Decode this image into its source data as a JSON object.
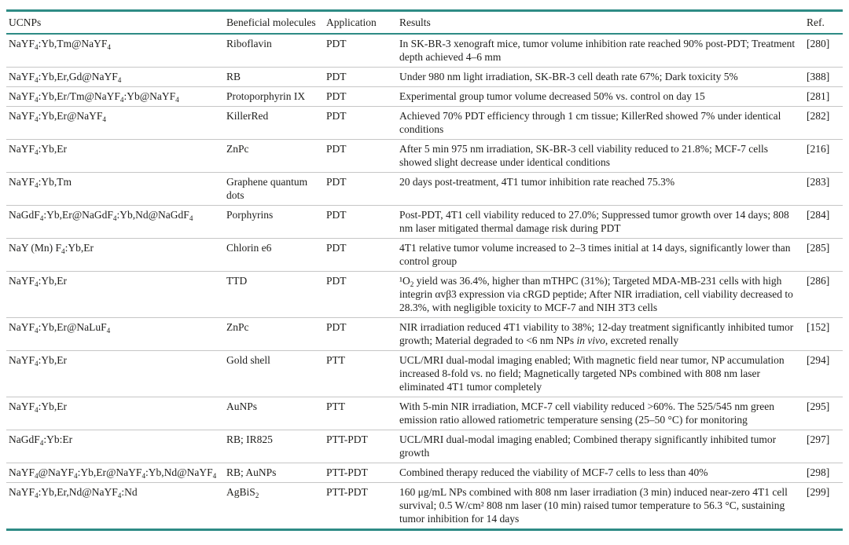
{
  "theme": {
    "accent_color": "#2e8b85",
    "divider_color": "#c6c6c6",
    "text_color": "#1e1e1c"
  },
  "table": {
    "columns": [
      {
        "key": "ucnp",
        "label": "UCNPs"
      },
      {
        "key": "molecule",
        "label": "Beneficial molecules"
      },
      {
        "key": "application",
        "label": "Application"
      },
      {
        "key": "results",
        "label": "Results"
      },
      {
        "key": "ref",
        "label": "Ref."
      }
    ],
    "rows": [
      {
        "ucnp": "NaYF₄:Yb,Tm@NaYF₄",
        "molecule": "Riboflavin",
        "application": "PDT",
        "results": "In SK-BR-3 xenograft mice, tumor volume inhibition rate reached 90% post-PDT; Treatment depth achieved 4–6 mm",
        "ref": "[280]"
      },
      {
        "ucnp": "NaYF₄:Yb,Er,Gd@NaYF₄",
        "molecule": "RB",
        "application": "PDT",
        "results": "Under 980 nm light irradiation, SK-BR-3 cell death rate 67%; Dark toxicity 5%",
        "ref": "[388]"
      },
      {
        "ucnp": "NaYF₄:Yb,Er/Tm@NaYF₄:Yb@NaYF₄",
        "molecule": "Protoporphyrin IX",
        "application": "PDT",
        "results": "Experimental group tumor volume decreased 50% vs. control on day 15",
        "ref": "[281]"
      },
      {
        "ucnp": "NaYF₄:Yb,Er@NaYF₄",
        "molecule": "KillerRed",
        "application": "PDT",
        "results": "Achieved 70% PDT efficiency through 1 cm tissue; KillerRed showed 7% under identical conditions",
        "ref": "[282]"
      },
      {
        "ucnp": "NaYF₄:Yb,Er",
        "molecule": "ZnPc",
        "application": "PDT",
        "results": "After 5 min 975 nm irradiation, SK-BR-3 cell viability reduced to 21.8%; MCF-7 cells showed slight decrease under identical conditions",
        "ref": "[216]"
      },
      {
        "ucnp": "NaYF₄:Yb,Tm",
        "molecule": "Graphene quantum dots",
        "application": "PDT",
        "results": "20 days post-treatment, 4T1 tumor inhibition rate reached 75.3%",
        "ref": "[283]"
      },
      {
        "ucnp": "NaGdF₄:Yb,Er@NaGdF₄:Yb,Nd@NaGdF₄",
        "molecule": "Porphyrins",
        "application": "PDT",
        "results": "Post-PDT, 4T1 cell viability reduced to 27.0%; Suppressed tumor growth over 14 days; 808 nm laser mitigated thermal damage risk during PDT",
        "ref": "[284]"
      },
      {
        "ucnp": "NaY (Mn) F₄:Yb,Er",
        "molecule": "Chlorin e6",
        "application": "PDT",
        "results": "4T1 relative tumor volume increased to 2–3 times initial at 14 days, significantly lower than control group",
        "ref": "[285]"
      },
      {
        "ucnp": "NaYF₄:Yb,Er",
        "molecule": "TTD",
        "application": "PDT",
        "results": "¹O₂ yield was 36.4%, higher than mTHPC (31%); Targeted MDA-MB-231 cells with high integrin αvβ3 expression via cRGD peptide; After NIR irradiation, cell viability decreased to 28.3%, with negligible toxicity to MCF-7 and NIH 3T3 cells",
        "ref": "[286]"
      },
      {
        "ucnp": "NaYF₄:Yb,Er@NaLuF₄",
        "molecule": "ZnPc",
        "application": "PDT",
        "results": "NIR irradiation reduced 4T1 viability to 38%; 12-day treatment significantly inhibited tumor growth; Material degraded to <6 nm NPs in vivo, excreted renally",
        "italics": [
          "in vivo"
        ],
        "ref": "[152]"
      },
      {
        "ucnp": "NaYF₄:Yb,Er",
        "molecule": "Gold shell",
        "application": "PTT",
        "results": "UCL/MRI dual-modal imaging enabled; With magnetic field near tumor, NP accumulation increased 8-fold vs. no field; Magnetically targeted NPs combined with 808 nm laser eliminated 4T1 tumor completely",
        "ref": "[294]"
      },
      {
        "ucnp": "NaYF₄:Yb,Er",
        "molecule": "AuNPs",
        "application": "PTT",
        "results": "With 5-min NIR irradiation, MCF-7 cell viability reduced >60%. The 525/545 nm green emission ratio allowed ratiometric temperature sensing (25–50 °C) for monitoring",
        "ref": "[295]"
      },
      {
        "ucnp": "NaGdF₄:Yb:Er",
        "molecule": "RB; IR825",
        "application": "PTT-PDT",
        "results": "UCL/MRI dual-modal imaging enabled; Combined therapy significantly inhibited tumor growth",
        "ref": "[297]"
      },
      {
        "ucnp": "NaYF₄@NaYF₄:Yb,Er@NaYF₄:Yb,Nd@NaYF₄",
        "molecule": "RB; AuNPs",
        "application": "PTT-PDT",
        "results": "Combined therapy reduced the viability of MCF-7 cells to less than 40%",
        "ref": "[298]"
      },
      {
        "ucnp": "NaYF₄:Yb,Er,Nd@NaYF₄:Nd",
        "molecule": "AgBiS₂",
        "application": "PTT-PDT",
        "results": "160 μg/mL NPs combined with 808 nm laser irradiation (3 min) induced near-zero 4T1 cell survival; 0.5 W/cm² 808 nm laser (10 min) raised tumor temperature to 56.3 °C, sustaining tumor inhibition for 14 days",
        "ref": "[299]"
      }
    ]
  }
}
